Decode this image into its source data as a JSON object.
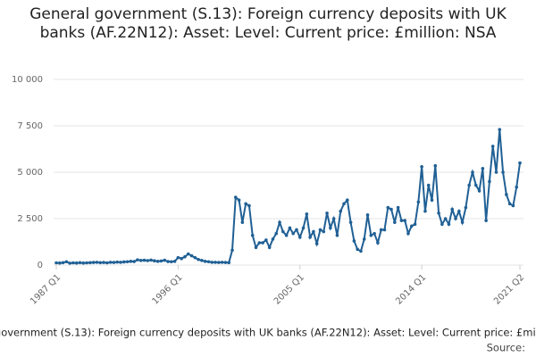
{
  "chart_data": {
    "type": "line",
    "title": "General government (S.13): Foreign currency deposits with UK banks (AF.22N12): Asset: Level: Current price: £million: NSA",
    "source": "Source:",
    "categories": [
      "1987 Q1",
      null,
      null,
      null,
      null,
      null,
      null,
      null,
      null,
      null,
      null,
      null,
      null,
      null,
      null,
      null,
      null,
      null,
      null,
      null,
      null,
      null,
      null,
      null,
      null,
      null,
      null,
      null,
      null,
      null,
      null,
      null,
      null,
      null,
      null,
      null,
      "1996 Q1",
      null,
      null,
      null,
      null,
      null,
      null,
      null,
      null,
      null,
      null,
      null,
      null,
      null,
      null,
      null,
      null,
      null,
      null,
      null,
      null,
      null,
      null,
      null,
      null,
      null,
      null,
      null,
      null,
      null,
      null,
      null,
      null,
      null,
      null,
      null,
      "2005 Q1",
      null,
      null,
      null,
      null,
      null,
      null,
      null,
      null,
      null,
      null,
      null,
      null,
      null,
      null,
      null,
      null,
      null,
      null,
      null,
      null,
      null,
      null,
      null,
      null,
      null,
      null,
      null,
      null,
      null,
      null,
      null,
      null,
      null,
      null,
      null,
      "2014 Q1",
      null,
      null,
      null,
      null,
      null,
      null,
      null,
      null,
      null,
      null,
      null,
      null,
      null,
      null,
      null,
      null,
      null,
      null,
      null,
      null,
      null,
      null,
      null,
      null,
      null,
      null,
      null,
      null,
      "2021 Q2"
    ],
    "series": [
      {
        "name": "General government (S.13): Foreign currency deposits with UK banks (AF.22N12): Asset: Level: Current price: £million: NSA",
        "color": "#206095",
        "values": [
          120,
          110,
          130,
          180,
          100,
          120,
          110,
          130,
          110,
          120,
          130,
          140,
          150,
          130,
          140,
          120,
          150,
          140,
          160,
          150,
          170,
          180,
          200,
          190,
          280,
          250,
          260,
          240,
          270,
          230,
          200,
          220,
          260,
          190,
          180,
          200,
          400,
          350,
          450,
          600,
          500,
          400,
          300,
          250,
          200,
          180,
          150,
          150,
          140,
          150,
          140,
          130,
          800,
          3650,
          3500,
          2300,
          3300,
          3200,
          1600,
          950,
          1200,
          1200,
          1350,
          950,
          1400,
          1700,
          2300,
          1800,
          1600,
          2000,
          1700,
          1900,
          1500,
          2000,
          2750,
          1500,
          1800,
          1150,
          1900,
          1800,
          2800,
          2000,
          2500,
          1600,
          2900,
          3300,
          3500,
          2300,
          1300,
          850,
          750,
          1400,
          2700,
          1600,
          1700,
          1200,
          1900,
          1900,
          3100,
          3000,
          2300,
          3100,
          2400,
          2400,
          1700,
          2100,
          2200,
          3400,
          5300,
          2900,
          4300,
          3500,
          5350,
          2800,
          2200,
          2500,
          2200,
          3000,
          2500,
          2900,
          2300,
          3100,
          4300,
          5000,
          4300,
          4000,
          5200,
          2400,
          4500,
          6400,
          5000,
          7300,
          5000,
          3800,
          3300,
          3200,
          4200,
          5500
        ]
      }
    ],
    "ylim": [
      0,
      10000
    ],
    "yticks": [
      0,
      {
        "value": 2500,
        "label": "2 500"
      },
      {
        "value": 5000,
        "label": "5 000"
      },
      {
        "value": 7500,
        "label": "7 500"
      },
      {
        "value": 10000,
        "label": "10 000"
      }
    ],
    "grid": true
  }
}
